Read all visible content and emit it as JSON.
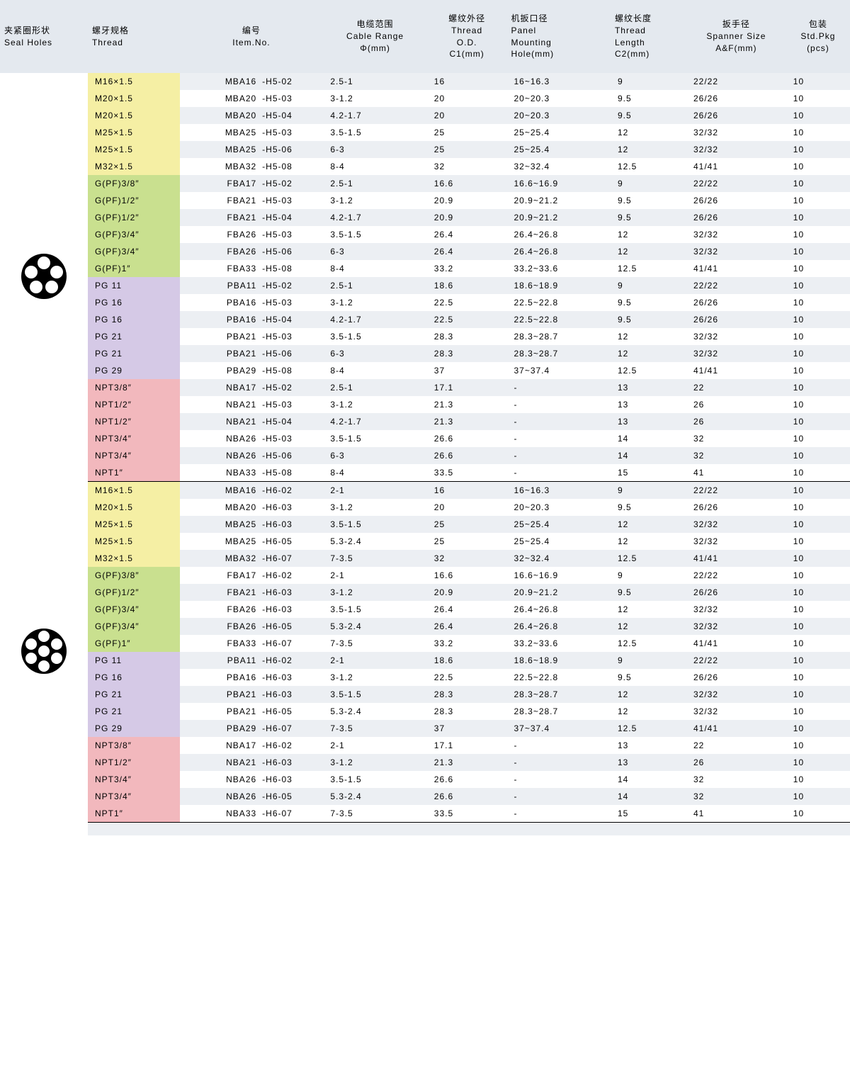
{
  "headers": {
    "seal": "夹紧圈形状\nSeal Holes",
    "thread": "螺牙规格\nThread",
    "item": "编号\nItem.No.",
    "cable": "电缆范围\nCable Range\nΦ(mm)",
    "od": "螺纹外径\nThread\nO.D.\nC1(mm)",
    "hole": "机扳口径\nPanel\nMounting\nHole(mm)",
    "len": "螺纹长度\nThread\nLength\nC2(mm)",
    "span": "扳手径\nSpanner Size\nA&F(mm)",
    "pkg": "包装\nStd.Pkg\n(pcs)"
  },
  "colors": {
    "yellow": "#f5efa4",
    "green": "#c9e08f",
    "purple": "#d5c9e6",
    "pink": "#f2b8bd",
    "rowOdd": "#eceff3",
    "rowEven": "#ffffff",
    "header": "#e4e9ef"
  },
  "groups": [
    {
      "sealSvg": "five",
      "rows": [
        {
          "c": "yellow",
          "thread": "M16×1.5",
          "il": "MBA16",
          "ir": "-H5-02",
          "cable": "2.5-1",
          "od": "16",
          "hole": "16~16.3",
          "len": "9",
          "span": "22/22",
          "pkg": "10"
        },
        {
          "c": "yellow",
          "thread": "M20×1.5",
          "il": "MBA20",
          "ir": "-H5-03",
          "cable": "3-1.2",
          "od": "20",
          "hole": "20~20.3",
          "len": "9.5",
          "span": "26/26",
          "pkg": "10"
        },
        {
          "c": "yellow",
          "thread": "M20×1.5",
          "il": "MBA20",
          "ir": "-H5-04",
          "cable": "4.2-1.7",
          "od": "20",
          "hole": "20~20.3",
          "len": "9.5",
          "span": "26/26",
          "pkg": "10"
        },
        {
          "c": "yellow",
          "thread": "M25×1.5",
          "il": "MBA25",
          "ir": "-H5-03",
          "cable": "3.5-1.5",
          "od": "25",
          "hole": "25~25.4",
          "len": "12",
          "span": "32/32",
          "pkg": "10"
        },
        {
          "c": "yellow",
          "thread": "M25×1.5",
          "il": "MBA25",
          "ir": "-H5-06",
          "cable": "6-3",
          "od": "25",
          "hole": "25~25.4",
          "len": "12",
          "span": "32/32",
          "pkg": "10"
        },
        {
          "c": "yellow",
          "thread": "M32×1.5",
          "il": "MBA32",
          "ir": "-H5-08",
          "cable": "8-4",
          "od": "32",
          "hole": "32~32.4",
          "len": "12.5",
          "span": "41/41",
          "pkg": "10"
        },
        {
          "c": "green",
          "thread": "G(PF)3/8″",
          "il": "FBA17",
          "ir": "-H5-02",
          "cable": "2.5-1",
          "od": "16.6",
          "hole": "16.6~16.9",
          "len": "9",
          "span": "22/22",
          "pkg": "10"
        },
        {
          "c": "green",
          "thread": "G(PF)1/2″",
          "il": "FBA21",
          "ir": "-H5-03",
          "cable": "3-1.2",
          "od": "20.9",
          "hole": "20.9~21.2",
          "len": "9.5",
          "span": "26/26",
          "pkg": "10"
        },
        {
          "c": "green",
          "thread": "G(PF)1/2″",
          "il": "FBA21",
          "ir": "-H5-04",
          "cable": "4.2-1.7",
          "od": "20.9",
          "hole": "20.9~21.2",
          "len": "9.5",
          "span": "26/26",
          "pkg": "10"
        },
        {
          "c": "green",
          "thread": "G(PF)3/4″",
          "il": "FBA26",
          "ir": "-H5-03",
          "cable": "3.5-1.5",
          "od": "26.4",
          "hole": "26.4~26.8",
          "len": "12",
          "span": "32/32",
          "pkg": "10"
        },
        {
          "c": "green",
          "thread": "G(PF)3/4″",
          "il": "FBA26",
          "ir": "-H5-06",
          "cable": "6-3",
          "od": "26.4",
          "hole": "26.4~26.8",
          "len": "12",
          "span": "32/32",
          "pkg": "10"
        },
        {
          "c": "green",
          "thread": "G(PF)1″",
          "il": "FBA33",
          "ir": "-H5-08",
          "cable": "8-4",
          "od": "33.2",
          "hole": "33.2~33.6",
          "len": "12.5",
          "span": "41/41",
          "pkg": "10"
        },
        {
          "c": "purple",
          "thread": "PG 11",
          "il": "PBA11",
          "ir": "-H5-02",
          "cable": "2.5-1",
          "od": "18.6",
          "hole": "18.6~18.9",
          "len": "9",
          "span": "22/22",
          "pkg": "10"
        },
        {
          "c": "purple",
          "thread": "PG 16",
          "il": "PBA16",
          "ir": "-H5-03",
          "cable": "3-1.2",
          "od": "22.5",
          "hole": "22.5~22.8",
          "len": "9.5",
          "span": "26/26",
          "pkg": "10"
        },
        {
          "c": "purple",
          "thread": "PG 16",
          "il": "PBA16",
          "ir": "-H5-04",
          "cable": "4.2-1.7",
          "od": "22.5",
          "hole": "22.5~22.8",
          "len": "9.5",
          "span": "26/26",
          "pkg": "10"
        },
        {
          "c": "purple",
          "thread": "PG 21",
          "il": "PBA21",
          "ir": "-H5-03",
          "cable": "3.5-1.5",
          "od": "28.3",
          "hole": "28.3~28.7",
          "len": "12",
          "span": "32/32",
          "pkg": "10"
        },
        {
          "c": "purple",
          "thread": "PG 21",
          "il": "PBA21",
          "ir": "-H5-06",
          "cable": "6-3",
          "od": "28.3",
          "hole": "28.3~28.7",
          "len": "12",
          "span": "32/32",
          "pkg": "10"
        },
        {
          "c": "purple",
          "thread": "PG 29",
          "il": "PBA29",
          "ir": "-H5-08",
          "cable": "8-4",
          "od": "37",
          "hole": "37~37.4",
          "len": "12.5",
          "span": "41/41",
          "pkg": "10"
        },
        {
          "c": "pink",
          "thread": "NPT3/8″",
          "il": "NBA17",
          "ir": "-H5-02",
          "cable": "2.5-1",
          "od": "17.1",
          "hole": "-",
          "len": "13",
          "span": "22",
          "pkg": "10"
        },
        {
          "c": "pink",
          "thread": "NPT1/2″",
          "il": "NBA21",
          "ir": "-H5-03",
          "cable": "3-1.2",
          "od": "21.3",
          "hole": "-",
          "len": "13",
          "span": "26",
          "pkg": "10"
        },
        {
          "c": "pink",
          "thread": "NPT1/2″",
          "il": "NBA21",
          "ir": "-H5-04",
          "cable": "4.2-1.7",
          "od": "21.3",
          "hole": "-",
          "len": "13",
          "span": "26",
          "pkg": "10"
        },
        {
          "c": "pink",
          "thread": "NPT3/4″",
          "il": "NBA26",
          "ir": "-H5-03",
          "cable": "3.5-1.5",
          "od": "26.6",
          "hole": "-",
          "len": "14",
          "span": "32",
          "pkg": "10"
        },
        {
          "c": "pink",
          "thread": "NPT3/4″",
          "il": "NBA26",
          "ir": "-H5-06",
          "cable": "6-3",
          "od": "26.6",
          "hole": "-",
          "len": "14",
          "span": "32",
          "pkg": "10"
        },
        {
          "c": "pink",
          "thread": "NPT1″",
          "il": "NBA33",
          "ir": "-H5-08",
          "cable": "8-4",
          "od": "33.5",
          "hole": "-",
          "len": "15",
          "span": "41",
          "pkg": "10"
        }
      ]
    },
    {
      "sealSvg": "six",
      "rows": [
        {
          "c": "yellow",
          "thread": "M16×1.5",
          "il": "MBA16",
          "ir": "-H6-02",
          "cable": "2-1",
          "od": "16",
          "hole": "16~16.3",
          "len": "9",
          "span": "22/22",
          "pkg": "10"
        },
        {
          "c": "yellow",
          "thread": "M20×1.5",
          "il": "MBA20",
          "ir": "-H6-03",
          "cable": "3-1.2",
          "od": "20",
          "hole": "20~20.3",
          "len": "9.5",
          "span": "26/26",
          "pkg": "10"
        },
        {
          "c": "yellow",
          "thread": "M25×1.5",
          "il": "MBA25",
          "ir": "-H6-03",
          "cable": "3.5-1.5",
          "od": "25",
          "hole": "25~25.4",
          "len": "12",
          "span": "32/32",
          "pkg": "10"
        },
        {
          "c": "yellow",
          "thread": "M25×1.5",
          "il": "MBA25",
          "ir": "-H6-05",
          "cable": "5.3-2.4",
          "od": "25",
          "hole": "25~25.4",
          "len": "12",
          "span": "32/32",
          "pkg": "10"
        },
        {
          "c": "yellow",
          "thread": "M32×1.5",
          "il": "MBA32",
          "ir": "-H6-07",
          "cable": "7-3.5",
          "od": "32",
          "hole": "32~32.4",
          "len": "12.5",
          "span": "41/41",
          "pkg": "10"
        },
        {
          "c": "green",
          "thread": "G(PF)3/8″",
          "il": "FBA17",
          "ir": "-H6-02",
          "cable": "2-1",
          "od": "16.6",
          "hole": "16.6~16.9",
          "len": "9",
          "span": "22/22",
          "pkg": "10"
        },
        {
          "c": "green",
          "thread": "G(PF)1/2″",
          "il": "FBA21",
          "ir": "-H6-03",
          "cable": "3-1.2",
          "od": "20.9",
          "hole": "20.9~21.2",
          "len": "9.5",
          "span": "26/26",
          "pkg": "10"
        },
        {
          "c": "green",
          "thread": "G(PF)3/4″",
          "il": "FBA26",
          "ir": "-H6-03",
          "cable": "3.5-1.5",
          "od": "26.4",
          "hole": "26.4~26.8",
          "len": "12",
          "span": "32/32",
          "pkg": "10"
        },
        {
          "c": "green",
          "thread": "G(PF)3/4″",
          "il": "FBA26",
          "ir": "-H6-05",
          "cable": "5.3-2.4",
          "od": "26.4",
          "hole": "26.4~26.8",
          "len": "12",
          "span": "32/32",
          "pkg": "10"
        },
        {
          "c": "green",
          "thread": "G(PF)1″",
          "il": "FBA33",
          "ir": "-H6-07",
          "cable": "7-3.5",
          "od": "33.2",
          "hole": "33.2~33.6",
          "len": "12.5",
          "span": "41/41",
          "pkg": "10"
        },
        {
          "c": "purple",
          "thread": "PG 11",
          "il": "PBA11",
          "ir": "-H6-02",
          "cable": "2-1",
          "od": "18.6",
          "hole": "18.6~18.9",
          "len": "9",
          "span": "22/22",
          "pkg": "10"
        },
        {
          "c": "purple",
          "thread": "PG 16",
          "il": "PBA16",
          "ir": "-H6-03",
          "cable": "3-1.2",
          "od": "22.5",
          "hole": "22.5~22.8",
          "len": "9.5",
          "span": "26/26",
          "pkg": "10"
        },
        {
          "c": "purple",
          "thread": "PG 21",
          "il": "PBA21",
          "ir": "-H6-03",
          "cable": "3.5-1.5",
          "od": "28.3",
          "hole": "28.3~28.7",
          "len": "12",
          "span": "32/32",
          "pkg": "10"
        },
        {
          "c": "purple",
          "thread": "PG 21",
          "il": "PBA21",
          "ir": "-H6-05",
          "cable": "5.3-2.4",
          "od": "28.3",
          "hole": "28.3~28.7",
          "len": "12",
          "span": "32/32",
          "pkg": "10"
        },
        {
          "c": "purple",
          "thread": "PG 29",
          "il": "PBA29",
          "ir": "-H6-07",
          "cable": "7-3.5",
          "od": "37",
          "hole": "37~37.4",
          "len": "12.5",
          "span": "41/41",
          "pkg": "10"
        },
        {
          "c": "pink",
          "thread": "NPT3/8″",
          "il": "NBA17",
          "ir": "-H6-02",
          "cable": "2-1",
          "od": "17.1",
          "hole": "-",
          "len": "13",
          "span": "22",
          "pkg": "10"
        },
        {
          "c": "pink",
          "thread": "NPT1/2″",
          "il": "NBA21",
          "ir": "-H6-03",
          "cable": "3-1.2",
          "od": "21.3",
          "hole": "-",
          "len": "13",
          "span": "26",
          "pkg": "10"
        },
        {
          "c": "pink",
          "thread": "NPT3/4″",
          "il": "NBA26",
          "ir": "-H6-03",
          "cable": "3.5-1.5",
          "od": "26.6",
          "hole": "-",
          "len": "14",
          "span": "32",
          "pkg": "10"
        },
        {
          "c": "pink",
          "thread": "NPT3/4″",
          "il": "NBA26",
          "ir": "-H6-05",
          "cable": "5.3-2.4",
          "od": "26.6",
          "hole": "-",
          "len": "14",
          "span": "32",
          "pkg": "10"
        },
        {
          "c": "pink",
          "thread": "NPT1″",
          "il": "NBA33",
          "ir": "-H6-07",
          "cable": "7-3.5",
          "od": "33.5",
          "hole": "-",
          "len": "15",
          "span": "41",
          "pkg": "10"
        }
      ]
    }
  ]
}
